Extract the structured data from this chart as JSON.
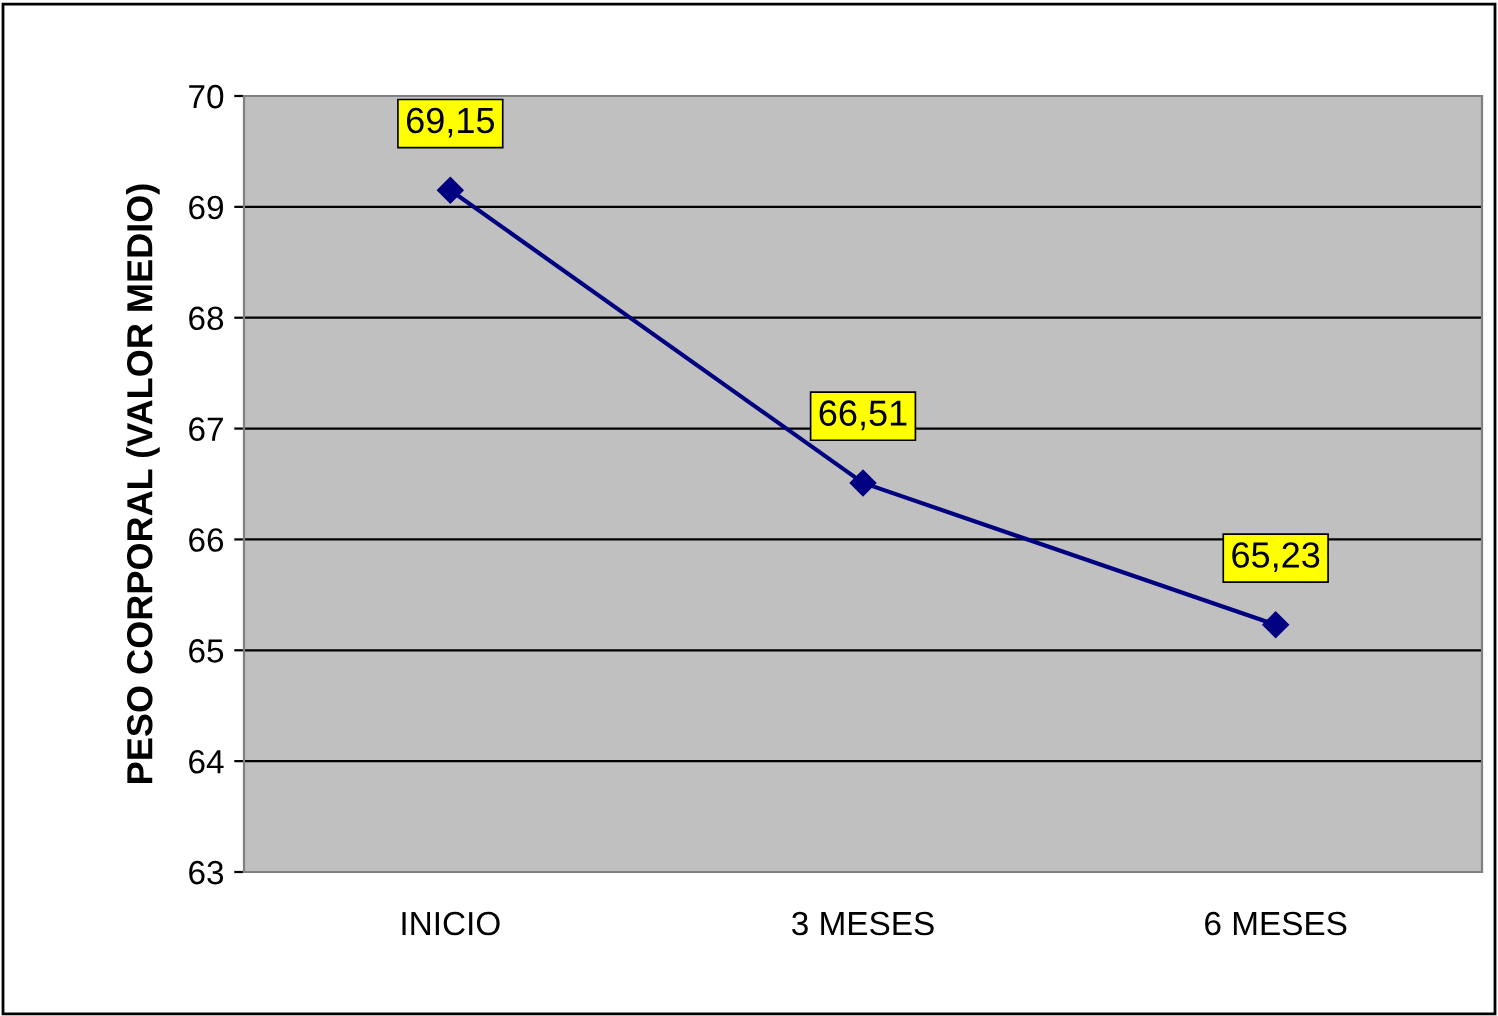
{
  "chart_data": {
    "type": "line",
    "ylabel": "PESO CORPORAL (VALOR MEDIO)",
    "categories": [
      "INICIO",
      "3 MESES",
      "6 MESES"
    ],
    "series": [
      {
        "color": "#000080",
        "values": [
          69.15,
          66.51,
          65.23
        ],
        "value_labels": [
          "69,15",
          "66,51",
          "65,23"
        ]
      }
    ],
    "ylim": [
      63,
      70
    ],
    "yticks": [
      63,
      64,
      65,
      66,
      67,
      68,
      69,
      70
    ],
    "grid": "y",
    "marker": "diamond",
    "line_style": "solid",
    "legend": false
  }
}
